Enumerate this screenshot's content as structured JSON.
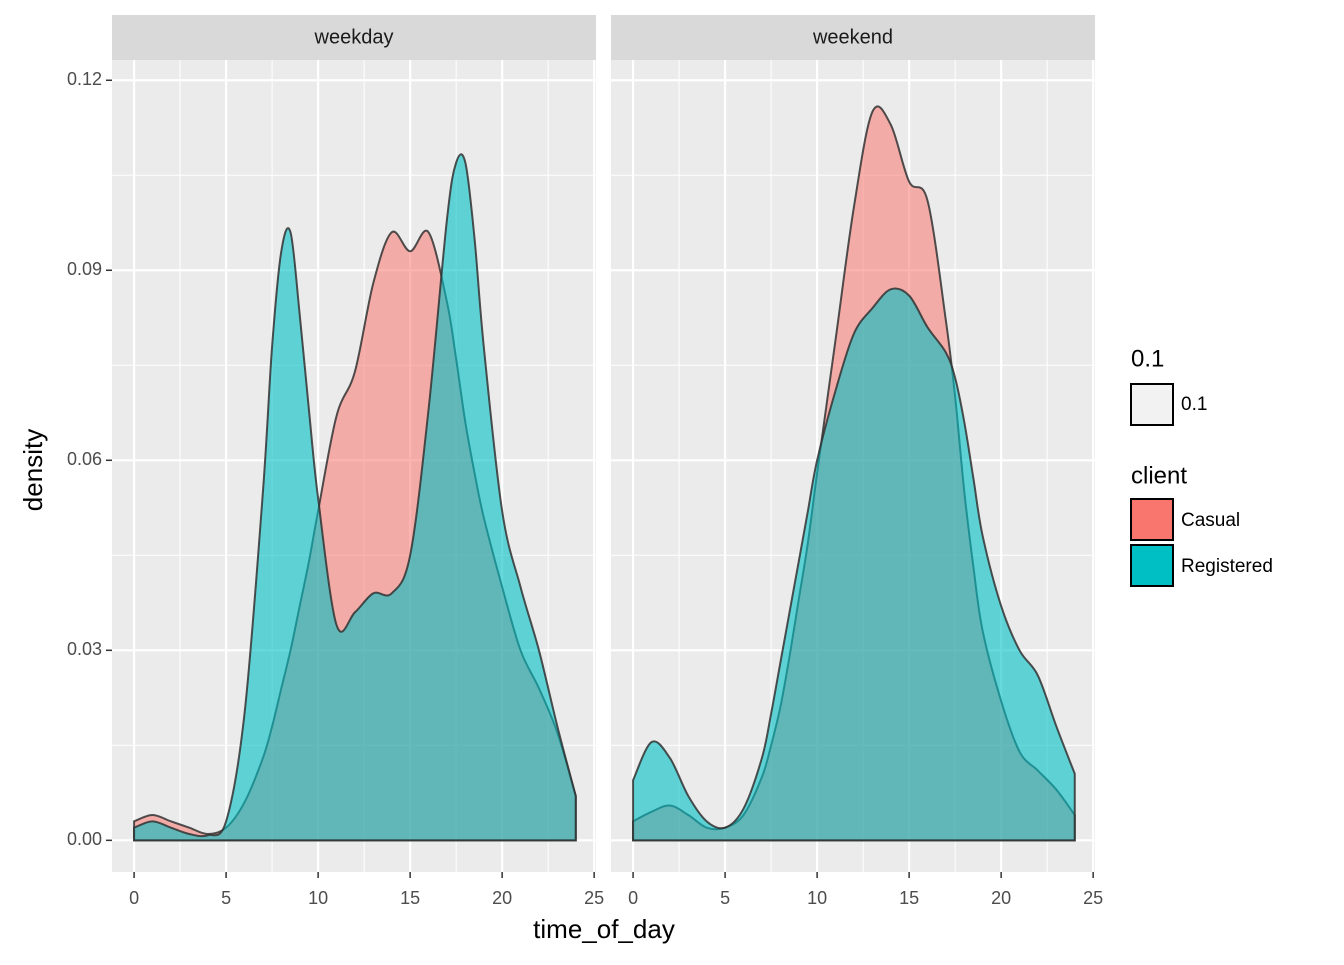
{
  "chart_data": {
    "type": "area",
    "x_label": "time_of_day",
    "y_label": "density",
    "x": [
      0,
      1,
      2,
      3,
      4,
      5,
      6,
      7,
      7.5,
      8,
      8.5,
      9,
      9.5,
      10,
      11,
      12,
      13,
      14,
      15,
      16,
      17,
      17.5,
      18,
      18.5,
      19,
      20,
      21,
      22,
      23,
      24
    ],
    "facets": [
      {
        "title": "weekday",
        "series": [
          {
            "name": "Casual",
            "color": "#F8766D",
            "values": [
              0.003,
              0.004,
              0.003,
              0.002,
              0.001,
              0.002,
              0.006,
              0.013,
              0.018,
              0.024,
              0.03,
              0.037,
              0.044,
              0.052,
              0.067,
              0.074,
              0.088,
              0.096,
              0.093,
              0.096,
              0.085,
              0.076,
              0.066,
              0.058,
              0.051,
              0.04,
              0.03,
              0.024,
              0.017,
              0.007
            ]
          },
          {
            "name": "Registered",
            "color": "#00BFC4",
            "values": [
              0.002,
              0.003,
              0.002,
              0.001,
              0.0008,
              0.003,
              0.02,
              0.055,
              0.078,
              0.093,
              0.096,
              0.083,
              0.068,
              0.054,
              0.034,
              0.036,
              0.039,
              0.039,
              0.045,
              0.068,
              0.098,
              0.107,
              0.107,
              0.095,
              0.078,
              0.052,
              0.04,
              0.03,
              0.018,
              0.007
            ]
          }
        ]
      },
      {
        "title": "weekend",
        "series": [
          {
            "name": "Casual",
            "color": "#F8766D",
            "values": [
              0.003,
              0.0045,
              0.0055,
              0.004,
              0.002,
              0.002,
              0.004,
              0.01,
              0.015,
              0.021,
              0.029,
              0.038,
              0.047,
              0.058,
              0.079,
              0.1,
              0.115,
              0.113,
              0.104,
              0.101,
              0.082,
              0.07,
              0.055,
              0.043,
              0.033,
              0.022,
              0.014,
              0.011,
              0.008,
              0.004
            ]
          },
          {
            "name": "Registered",
            "color": "#00BFC4",
            "values": [
              0.0095,
              0.0155,
              0.013,
              0.007,
              0.003,
              0.002,
              0.005,
              0.013,
              0.02,
              0.028,
              0.036,
              0.044,
              0.052,
              0.06,
              0.071,
              0.08,
              0.084,
              0.087,
              0.086,
              0.081,
              0.077,
              0.073,
              0.066,
              0.057,
              0.048,
              0.037,
              0.03,
              0.026,
              0.018,
              0.0105
            ]
          }
        ]
      }
    ],
    "xlim": [
      -1.2,
      25.1
    ],
    "xticks": [
      0,
      5,
      10,
      15,
      20,
      25
    ],
    "ylim": [
      -0.005,
      0.1232
    ],
    "yticks": [
      {
        "value": 0,
        "label": "0.00"
      },
      0.03,
      0.06,
      0.09,
      0.12
    ],
    "grid": true,
    "legend": {
      "position": "right",
      "alpha_title": "0.1",
      "alpha_label": "0.1",
      "title": "client"
    }
  }
}
